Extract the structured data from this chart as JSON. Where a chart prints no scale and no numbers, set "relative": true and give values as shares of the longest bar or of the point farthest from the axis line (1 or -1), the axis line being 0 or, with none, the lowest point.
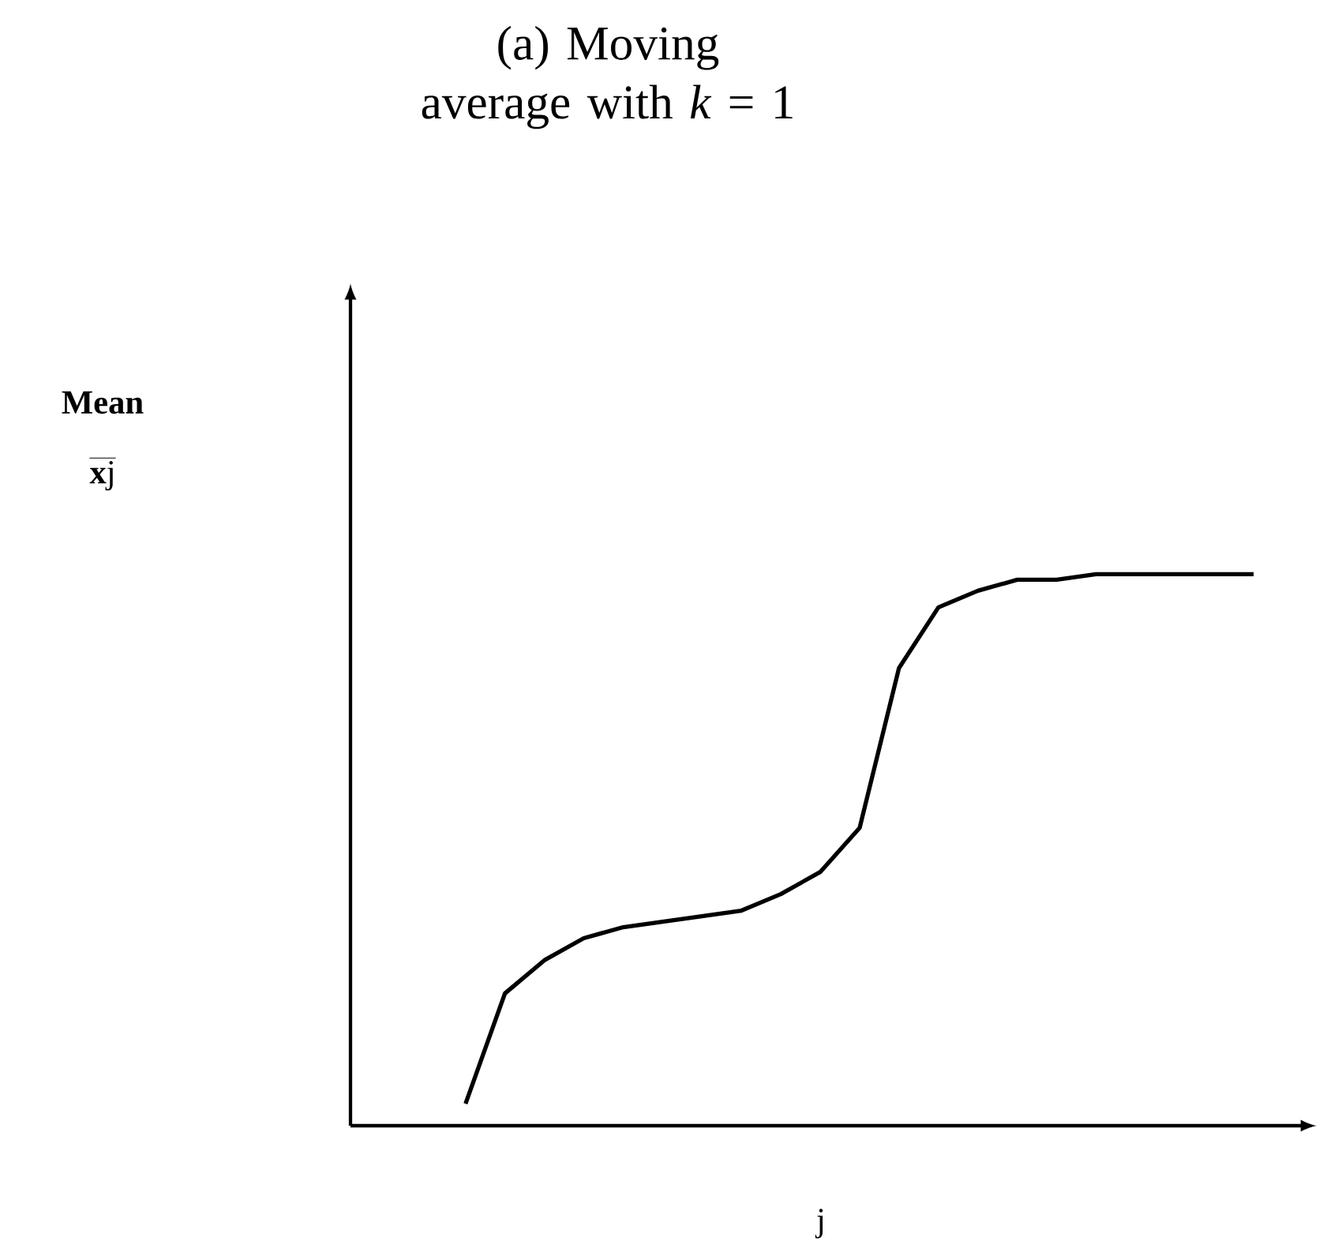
{
  "chart_data": {
    "type": "line",
    "title": "(a) Moving average with *k* = 1",
    "xlabel": "j",
    "annotations": [
      "Mean",
      "**x**j"
    ],
    "relative": true,
    "color": "#000000",
    "categories": [
      null,
      null,
      null,
      null,
      null,
      null,
      null,
      null,
      null,
      null,
      null,
      null,
      null,
      null,
      null,
      null,
      null,
      null,
      null,
      null,
      null
    ],
    "values": [
      0.04,
      0.24,
      0.3,
      0.34,
      0.36,
      0.37,
      0.38,
      0.39,
      0.42,
      0.46,
      0.54,
      0.83,
      0.94,
      0.97,
      0.99,
      0.99,
      1,
      1,
      1,
      1,
      1
    ]
  }
}
